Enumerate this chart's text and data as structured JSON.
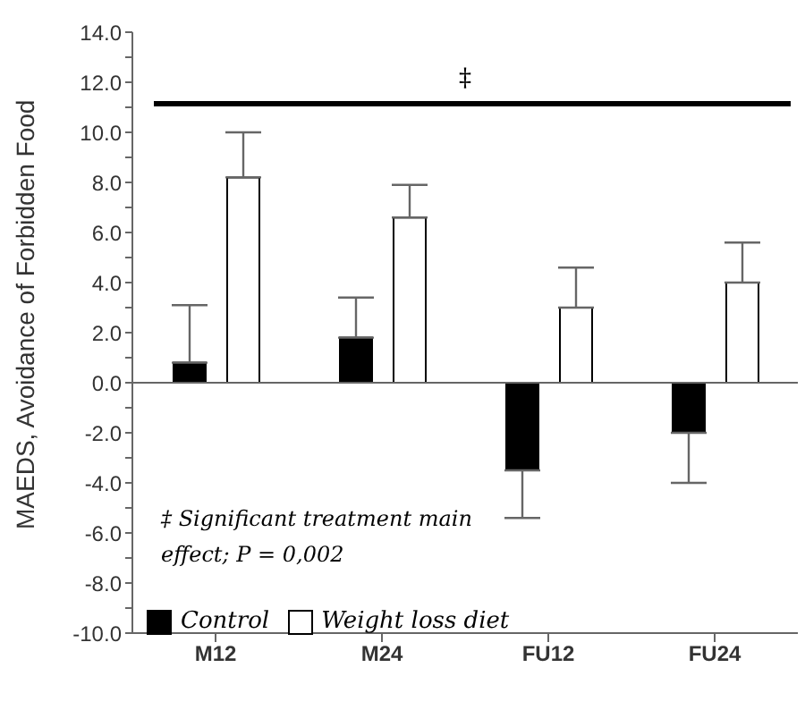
{
  "chart_data": {
    "type": "bar",
    "ylabel": "MAEDS, Avoidance of Forbidden Food",
    "categories": [
      "M12",
      "M24",
      "FU12",
      "FU24"
    ],
    "series": [
      {
        "name": "Control",
        "color": "#000000",
        "values": [
          0.8,
          1.8,
          -3.5,
          -2.0
        ],
        "errors": [
          [
            0.8,
            3.1
          ],
          [
            1.8,
            3.4
          ],
          [
            -5.4,
            -3.5
          ],
          [
            -4.0,
            -2.0
          ]
        ]
      },
      {
        "name": "Weight loss diet",
        "color": "#ffffff",
        "values": [
          8.2,
          6.6,
          3.0,
          4.0
        ],
        "errors": [
          [
            8.2,
            10.0
          ],
          [
            6.6,
            7.9
          ],
          [
            3.0,
            4.6
          ],
          [
            4.0,
            5.6
          ]
        ]
      }
    ],
    "ylim": [
      -10,
      14
    ],
    "yticks": [
      {
        "value": -10,
        "label": "-10.0"
      },
      {
        "value": -9,
        "label": null
      },
      {
        "value": -8,
        "label": "-8.0"
      },
      {
        "value": -7,
        "label": null
      },
      {
        "value": -6,
        "label": "-6.0"
      },
      {
        "value": -5,
        "label": null
      },
      {
        "value": -4,
        "label": "-4.0"
      },
      {
        "value": -3,
        "label": null
      },
      {
        "value": -2,
        "label": "-2.0"
      },
      {
        "value": -1,
        "label": null
      },
      {
        "value": 0,
        "label": "0.0"
      },
      {
        "value": 1,
        "label": null
      },
      {
        "value": 2,
        "label": "2.0"
      },
      {
        "value": 3,
        "label": null
      },
      {
        "value": 4,
        "label": "4.0"
      },
      {
        "value": 5,
        "label": null
      },
      {
        "value": 6,
        "label": "6.0"
      },
      {
        "value": 7,
        "label": null
      },
      {
        "value": 8,
        "label": "8.0"
      },
      {
        "value": 9,
        "label": null
      },
      {
        "value": 10,
        "label": "10.0"
      },
      {
        "value": 11,
        "label": null
      },
      {
        "value": 12,
        "label": "12.0"
      },
      {
        "value": 13,
        "label": null
      },
      {
        "value": 14,
        "label": "14.0"
      }
    ],
    "annotations": [
      "‡",
      "‡ Significant treatment main effect; P = 0,002"
    ],
    "legend": "bottom left"
  }
}
